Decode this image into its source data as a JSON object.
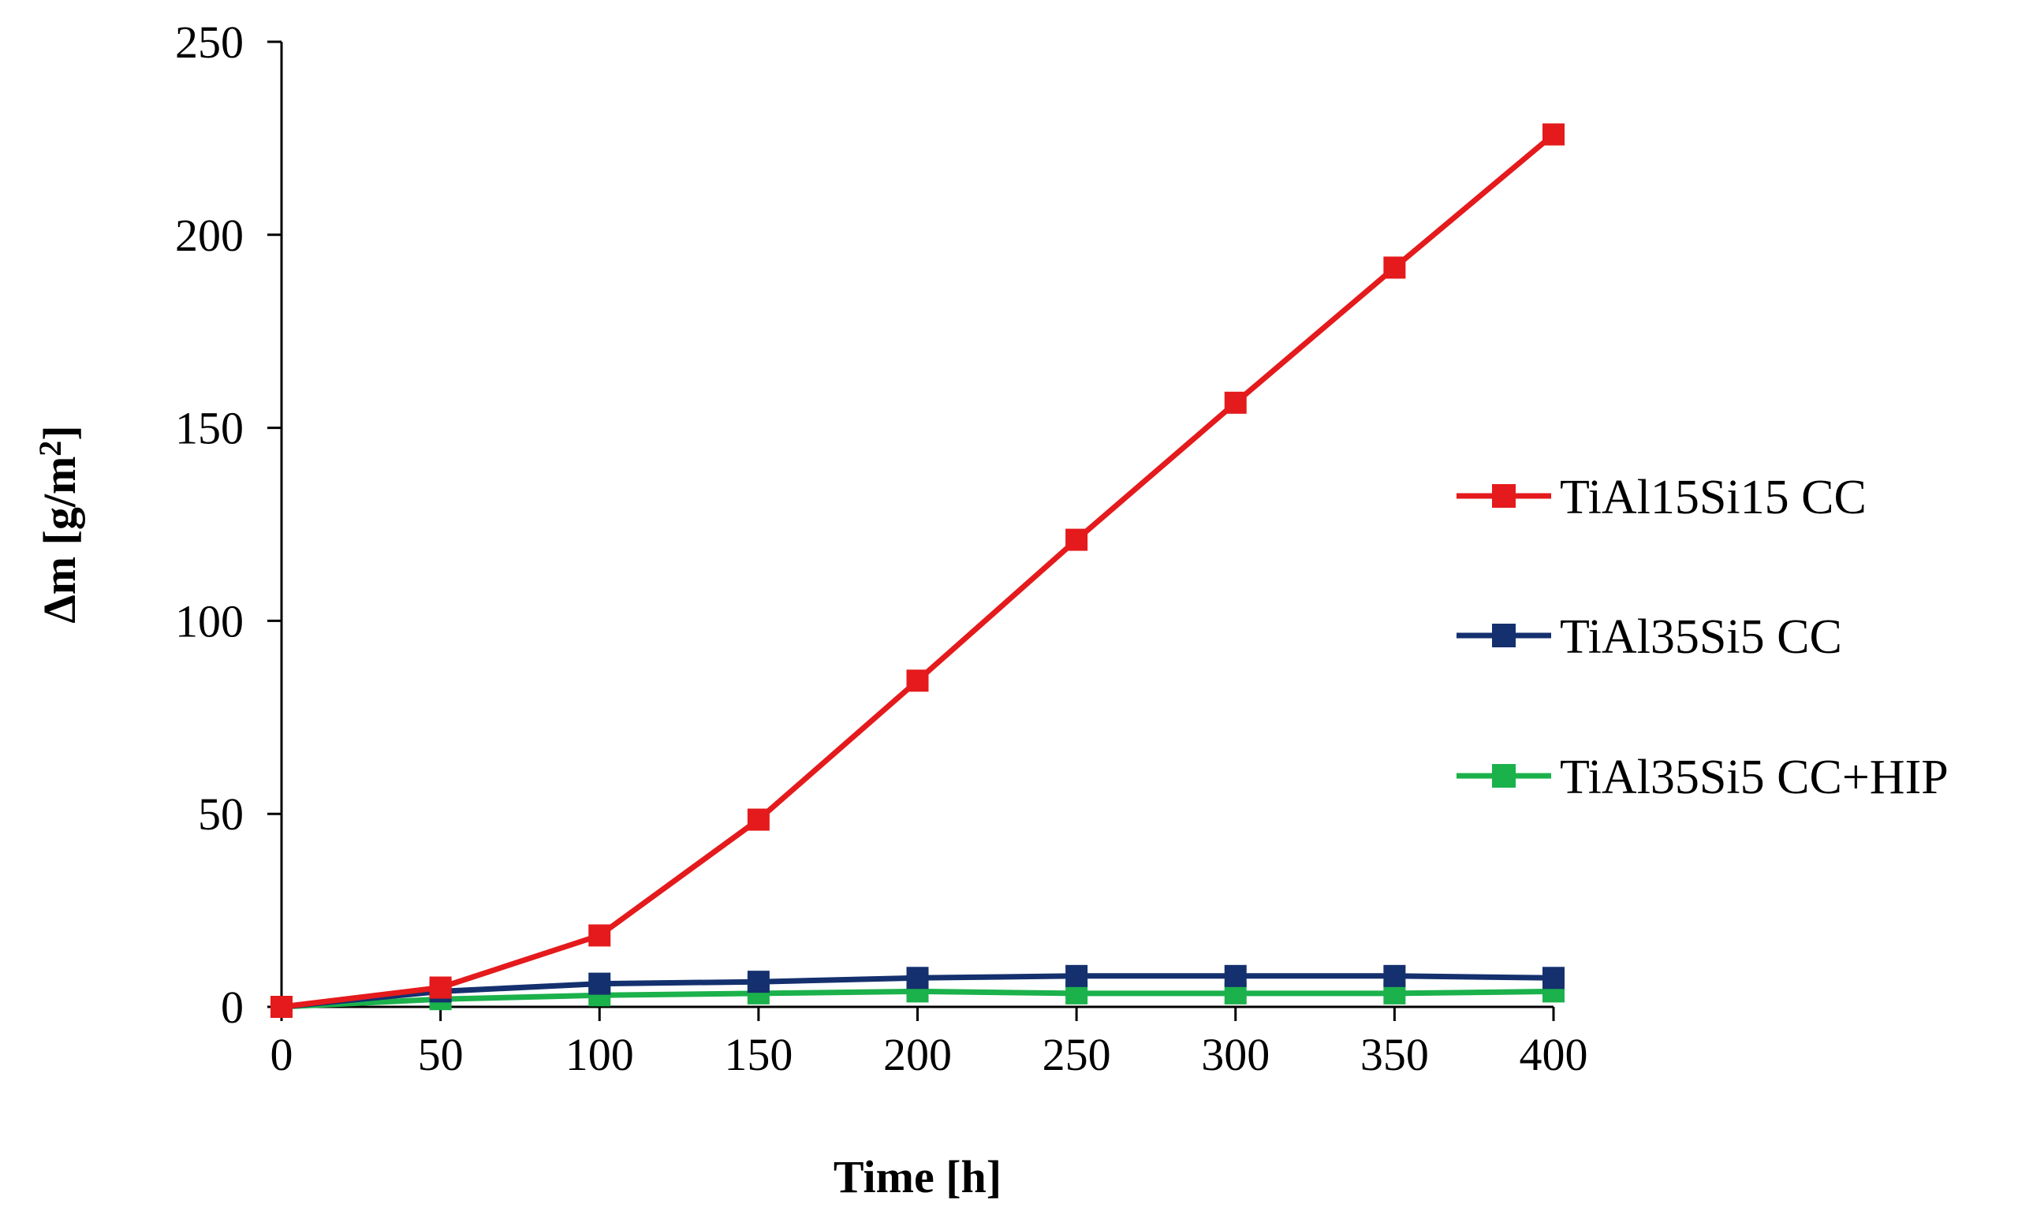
{
  "chart_data": {
    "type": "line",
    "title": "",
    "xlabel": "Time [h]",
    "ylabel": "Δm [g/m²]",
    "ylabel_parts": {
      "main": "Δm [g/m",
      "sup": "2",
      "end": "]"
    },
    "x": [
      0,
      50,
      100,
      150,
      200,
      250,
      300,
      350,
      400
    ],
    "xlim": [
      0,
      400
    ],
    "ylim": [
      0,
      250
    ],
    "xticks": [
      0,
      50,
      100,
      150,
      200,
      250,
      300,
      350,
      400
    ],
    "yticks": [
      0,
      50,
      100,
      150,
      200,
      250
    ],
    "grid": false,
    "legend_position": "right",
    "series": [
      {
        "name": "TiAl15Si15 CC",
        "color": "#e41a1c",
        "marker": "square",
        "values": [
          0,
          5,
          18.5,
          48.5,
          84.5,
          121,
          156.5,
          191.5,
          226
        ]
      },
      {
        "name": "TiAl35Si5 CC",
        "color": "#14306e",
        "marker": "square",
        "values": [
          0,
          4,
          6,
          6.5,
          7.5,
          8,
          8,
          8,
          7.5
        ]
      },
      {
        "name": "TiAl35Si5 CC+HIP",
        "color": "#1bb14b",
        "marker": "square",
        "values": [
          0,
          2,
          3,
          3.5,
          4,
          3.5,
          3.5,
          3.5,
          4
        ]
      }
    ]
  }
}
